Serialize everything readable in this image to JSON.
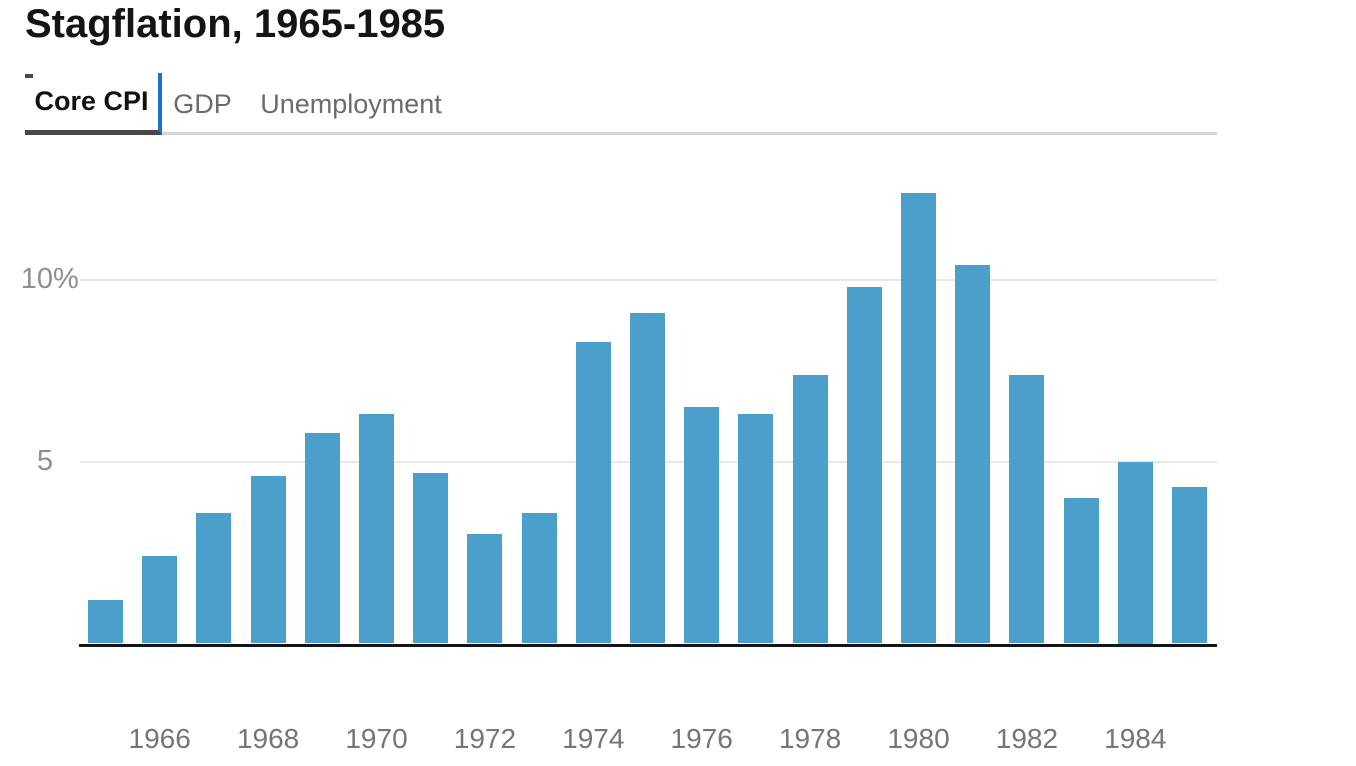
{
  "title": "Stagflation, 1965-1985",
  "tabs": [
    {
      "label": "Core CPI",
      "active": true
    },
    {
      "label": "GDP",
      "active": false
    },
    {
      "label": "Unemployment",
      "active": false
    }
  ],
  "colors": {
    "bar": "#4b9fca",
    "active_tab_underline": "#484848",
    "active_tab_focus_blue": "#1c6de0",
    "tab_divider_line": "#d6d6d6",
    "gridline": "#e8e8e8",
    "axis_line": "#151515",
    "y_tick_text": "#8f8f8f",
    "x_tick_text": "#757575",
    "inactive_tab_text": "#6b6b6b"
  },
  "chart_data": {
    "type": "bar",
    "title": "Stagflation, 1965-1985",
    "active_series": "Core CPI",
    "unit": "%",
    "x": [
      1965,
      1966,
      1967,
      1968,
      1969,
      1970,
      1971,
      1972,
      1973,
      1974,
      1975,
      1976,
      1977,
      1978,
      1979,
      1980,
      1981,
      1982,
      1983,
      1984,
      1985
    ],
    "values": [
      1.2,
      2.4,
      3.6,
      4.6,
      5.8,
      6.3,
      4.7,
      3.0,
      3.6,
      8.3,
      9.1,
      6.5,
      6.3,
      7.4,
      9.8,
      12.4,
      10.4,
      7.4,
      4.0,
      5.0,
      4.3
    ],
    "y_ticks": [
      {
        "value": 5,
        "label": "5"
      },
      {
        "value": 10,
        "label": "10%"
      }
    ],
    "x_tick_labels": [
      "1966",
      "1968",
      "1970",
      "1972",
      "1974",
      "1976",
      "1978",
      "1980",
      "1982",
      "1984"
    ],
    "ylim": [
      0,
      13.6
    ],
    "grid": "horizontal",
    "legend": "none"
  }
}
